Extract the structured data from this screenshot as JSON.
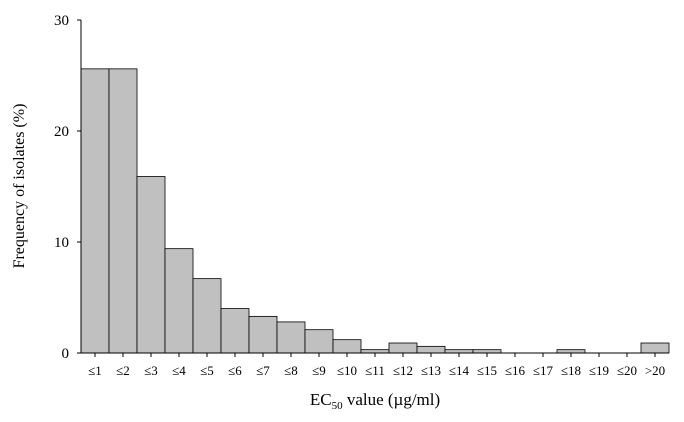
{
  "chart_data": {
    "type": "bar",
    "title": "",
    "categories": [
      "≤1",
      "≤2",
      "≤3",
      "≤4",
      "≤5",
      "≤6",
      "≤7",
      "≤8",
      "≤9",
      "≤10",
      "≤11",
      "≤12",
      "≤13",
      "≤14",
      "≤15",
      "≤16",
      "≤17",
      "≤18",
      "≤19",
      "≤20",
      ">20"
    ],
    "values": [
      25.6,
      25.6,
      15.9,
      9.4,
      6.7,
      4.0,
      3.3,
      2.8,
      2.1,
      1.2,
      0.3,
      0.9,
      0.6,
      0.3,
      0.3,
      0.0,
      0.0,
      0.3,
      0.0,
      0.0,
      0.9
    ],
    "ylabel": "Frequency of isolates (%)",
    "xlabel_main": "EC",
    "xlabel_sub": "50",
    "xlabel_rest": " value (µg/ml)",
    "ylim": [
      0,
      30
    ],
    "yticks": [
      "0",
      "10",
      "20",
      "30"
    ],
    "ytick_values": [
      0,
      10,
      20,
      30
    ],
    "bar_color": "#c0c0c0",
    "grid": false
  }
}
